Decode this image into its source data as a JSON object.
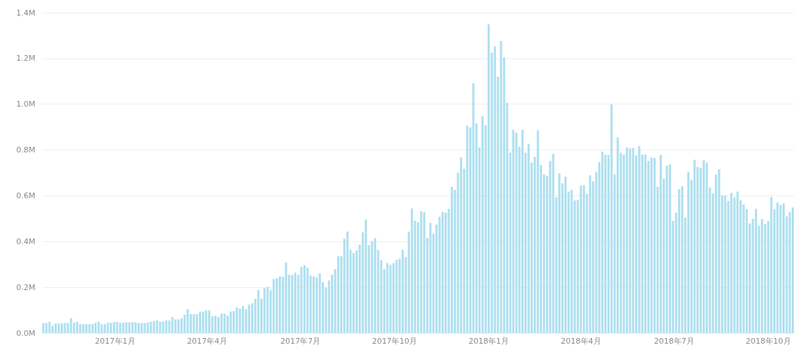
{
  "chart_data": {
    "type": "bar",
    "x": [
      "2016-10-23",
      "2016-10-26",
      "2016-10-29",
      "2016-11-01",
      "2016-11-04",
      "2016-11-07",
      "2016-11-10",
      "2016-11-13",
      "2016-11-16",
      "2016-11-19",
      "2016-11-22",
      "2016-11-25",
      "2016-11-28",
      "2016-12-01",
      "2016-12-04",
      "2016-12-07",
      "2016-12-10",
      "2016-12-13",
      "2016-12-16",
      "2016-12-19",
      "2016-12-22",
      "2016-12-25",
      "2016-12-28",
      "2016-12-31",
      "2017-01-03",
      "2017-01-06",
      "2017-01-09",
      "2017-01-12",
      "2017-01-15",
      "2017-01-18",
      "2017-01-21",
      "2017-01-24",
      "2017-01-27",
      "2017-01-30",
      "2017-02-02",
      "2017-02-05",
      "2017-02-08",
      "2017-02-11",
      "2017-02-14",
      "2017-02-17",
      "2017-02-20",
      "2017-02-23",
      "2017-02-26",
      "2017-03-01",
      "2017-03-04",
      "2017-03-07",
      "2017-03-10",
      "2017-03-13",
      "2017-03-16",
      "2017-03-19",
      "2017-03-22",
      "2017-03-25",
      "2017-03-28",
      "2017-03-31",
      "2017-04-03",
      "2017-04-06",
      "2017-04-09",
      "2017-04-12",
      "2017-04-15",
      "2017-04-18",
      "2017-04-21",
      "2017-04-24",
      "2017-04-27",
      "2017-04-30",
      "2017-05-03",
      "2017-05-06",
      "2017-05-09",
      "2017-05-12",
      "2017-05-15",
      "2017-05-18",
      "2017-05-21",
      "2017-05-24",
      "2017-05-27",
      "2017-05-30",
      "2017-06-02",
      "2017-06-05",
      "2017-06-08",
      "2017-06-11",
      "2017-06-14",
      "2017-06-17",
      "2017-06-20",
      "2017-06-23",
      "2017-06-26",
      "2017-06-29",
      "2017-07-02",
      "2017-07-05",
      "2017-07-08",
      "2017-07-11",
      "2017-07-14",
      "2017-07-17",
      "2017-07-20",
      "2017-07-23",
      "2017-07-26",
      "2017-07-29",
      "2017-08-01",
      "2017-08-04",
      "2017-08-07",
      "2017-08-10",
      "2017-08-13",
      "2017-08-16",
      "2017-08-19",
      "2017-08-22",
      "2017-08-25",
      "2017-08-28",
      "2017-08-31",
      "2017-09-03",
      "2017-09-06",
      "2017-09-09",
      "2017-09-12",
      "2017-09-15",
      "2017-09-18",
      "2017-09-21",
      "2017-09-24",
      "2017-09-27",
      "2017-09-30",
      "2017-10-03",
      "2017-10-06",
      "2017-10-09",
      "2017-10-12",
      "2017-10-15",
      "2017-10-18",
      "2017-10-21",
      "2017-10-24",
      "2017-10-27",
      "2017-10-30",
      "2017-11-02",
      "2017-11-05",
      "2017-11-08",
      "2017-11-11",
      "2017-11-14",
      "2017-11-17",
      "2017-11-20",
      "2017-11-23",
      "2017-11-26",
      "2017-11-29",
      "2017-12-02",
      "2017-12-05",
      "2017-12-08",
      "2017-12-11",
      "2017-12-14",
      "2017-12-17",
      "2017-12-20",
      "2017-12-23",
      "2017-12-26",
      "2017-12-29",
      "2018-01-01",
      "2018-01-04",
      "2018-01-07",
      "2018-01-10",
      "2018-01-13",
      "2018-01-16",
      "2018-01-19",
      "2018-01-22",
      "2018-01-25",
      "2018-01-28",
      "2018-01-31",
      "2018-02-03",
      "2018-02-06",
      "2018-02-09",
      "2018-02-12",
      "2018-02-15",
      "2018-02-18",
      "2018-02-21",
      "2018-02-24",
      "2018-02-27",
      "2018-03-02",
      "2018-03-05",
      "2018-03-08",
      "2018-03-11",
      "2018-03-14",
      "2018-03-17",
      "2018-03-20",
      "2018-03-23",
      "2018-03-26",
      "2018-03-29",
      "2018-04-01",
      "2018-04-04",
      "2018-04-07",
      "2018-04-10",
      "2018-04-13",
      "2018-04-16",
      "2018-04-19",
      "2018-04-22",
      "2018-04-25",
      "2018-04-28",
      "2018-05-01",
      "2018-05-04",
      "2018-05-07",
      "2018-05-10",
      "2018-05-13",
      "2018-05-16",
      "2018-05-19",
      "2018-05-22",
      "2018-05-25",
      "2018-05-28",
      "2018-05-31",
      "2018-06-03",
      "2018-06-06",
      "2018-06-09",
      "2018-06-12",
      "2018-06-15",
      "2018-06-18",
      "2018-06-21",
      "2018-06-24",
      "2018-06-27",
      "2018-06-30",
      "2018-07-03",
      "2018-07-06",
      "2018-07-09",
      "2018-07-12",
      "2018-07-15",
      "2018-07-18",
      "2018-07-21",
      "2018-07-24",
      "2018-07-27",
      "2018-07-30",
      "2018-08-02",
      "2018-08-05",
      "2018-08-08",
      "2018-08-11",
      "2018-08-14",
      "2018-08-17",
      "2018-08-20",
      "2018-08-23",
      "2018-08-26",
      "2018-08-29",
      "2018-09-01",
      "2018-09-04",
      "2018-09-07",
      "2018-09-10",
      "2018-09-13",
      "2018-09-16",
      "2018-09-19",
      "2018-09-22",
      "2018-09-25",
      "2018-09-28",
      "2018-10-01",
      "2018-10-04",
      "2018-10-07",
      "2018-10-10",
      "2018-10-13",
      "2018-10-16",
      "2018-10-19",
      "2018-10-22",
      "2018-10-25"
    ],
    "values": [
      0.044,
      0.044,
      0.049,
      0.032,
      0.042,
      0.042,
      0.042,
      0.044,
      0.044,
      0.065,
      0.045,
      0.049,
      0.039,
      0.039,
      0.039,
      0.039,
      0.039,
      0.045,
      0.05,
      0.039,
      0.039,
      0.045,
      0.045,
      0.049,
      0.049,
      0.045,
      0.045,
      0.047,
      0.047,
      0.047,
      0.047,
      0.044,
      0.044,
      0.044,
      0.046,
      0.05,
      0.052,
      0.055,
      0.049,
      0.05,
      0.055,
      0.055,
      0.07,
      0.06,
      0.06,
      0.065,
      0.08,
      0.105,
      0.083,
      0.083,
      0.083,
      0.094,
      0.094,
      0.1,
      0.099,
      0.073,
      0.076,
      0.07,
      0.085,
      0.085,
      0.076,
      0.094,
      0.096,
      0.112,
      0.107,
      0.118,
      0.104,
      0.125,
      0.13,
      0.15,
      0.188,
      0.15,
      0.197,
      0.202,
      0.187,
      0.236,
      0.24,
      0.248,
      0.246,
      0.308,
      0.254,
      0.254,
      0.264,
      0.254,
      0.29,
      0.296,
      0.286,
      0.251,
      0.247,
      0.243,
      0.26,
      0.222,
      0.199,
      0.23,
      0.255,
      0.279,
      0.337,
      0.335,
      0.412,
      0.443,
      0.364,
      0.35,
      0.361,
      0.386,
      0.44,
      0.496,
      0.384,
      0.402,
      0.415,
      0.364,
      0.32,
      0.279,
      0.306,
      0.298,
      0.306,
      0.32,
      0.325,
      0.364,
      0.332,
      0.443,
      0.545,
      0.491,
      0.484,
      0.532,
      0.528,
      0.416,
      0.481,
      0.435,
      0.474,
      0.508,
      0.529,
      0.526,
      0.543,
      0.639,
      0.626,
      0.701,
      0.767,
      0.718,
      0.906,
      0.899,
      1.092,
      0.917,
      0.811,
      0.948,
      0.909,
      1.349,
      1.225,
      1.253,
      1.119,
      1.277,
      1.205,
      1.006,
      0.788,
      0.889,
      0.876,
      0.814,
      0.889,
      0.788,
      0.827,
      0.745,
      0.77,
      0.886,
      0.735,
      0.693,
      0.687,
      0.752,
      0.783,
      0.593,
      0.698,
      0.654,
      0.683,
      0.618,
      0.626,
      0.58,
      0.582,
      0.644,
      0.646,
      0.608,
      0.69,
      0.663,
      0.704,
      0.747,
      0.793,
      0.78,
      0.778,
      0.999,
      0.693,
      0.855,
      0.788,
      0.78,
      0.811,
      0.807,
      0.809,
      0.776,
      0.817,
      0.78,
      0.78,
      0.752,
      0.767,
      0.765,
      0.639,
      0.778,
      0.675,
      0.731,
      0.737,
      0.49,
      0.526,
      0.629,
      0.642,
      0.505,
      0.704,
      0.67,
      0.757,
      0.726,
      0.721,
      0.755,
      0.745,
      0.636,
      0.611,
      0.693,
      0.716,
      0.601,
      0.601,
      0.577,
      0.613,
      0.593,
      0.618,
      0.58,
      0.562,
      0.541,
      0.479,
      0.5,
      0.543,
      0.469,
      0.498,
      0.477,
      0.49,
      0.595,
      0.541,
      0.57,
      0.56,
      0.567,
      0.51,
      0.529,
      0.549
    ],
    "color": "#b0e0f0",
    "xlim": [
      "2016-10-22",
      "2018-10-26"
    ],
    "xticks": [
      {
        "value": "2017-01-01",
        "label": "2017年1月"
      },
      {
        "value": "2017-04-01",
        "label": "2017年4月"
      },
      {
        "value": "2017-07-01",
        "label": "2017年7月"
      },
      {
        "value": "2017-10-01",
        "label": "2017年10月"
      },
      {
        "value": "2018-01-01",
        "label": "2018年1月"
      },
      {
        "value": "2018-04-01",
        "label": "2018年4月"
      },
      {
        "value": "2018-07-01",
        "label": "2018年7月"
      },
      {
        "value": "2018-10-01",
        "label": "2018年10月"
      }
    ],
    "ylim": [
      0,
      1.4
    ],
    "yticks": [
      {
        "value": 0,
        "label": "0.0M"
      },
      {
        "value": 0.2,
        "label": "0.2M"
      },
      {
        "value": 0.4,
        "label": "0.4M"
      },
      {
        "value": 0.6,
        "label": "0.6M"
      },
      {
        "value": 0.8,
        "label": "0.8M"
      },
      {
        "value": 1,
        "label": "1.0M"
      },
      {
        "value": 1.2,
        "label": "1.2M"
      },
      {
        "value": 1.4,
        "label": "1.4M"
      }
    ],
    "grid": "y"
  }
}
